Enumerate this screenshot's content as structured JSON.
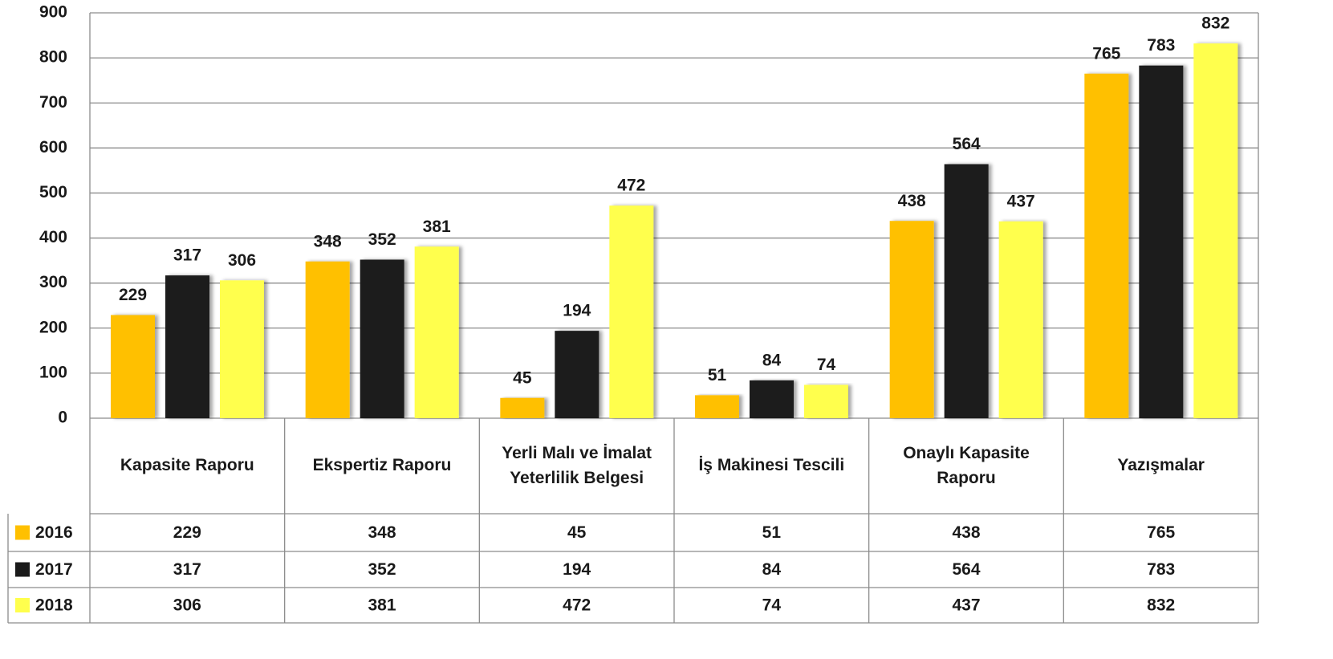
{
  "chart_data": {
    "type": "bar",
    "categories": [
      "Kapasite Raporu",
      "Ekspertiz Raporu",
      "Yerli Malı ve İmalat Yeterlilik Belgesi",
      "İş Makinesi Tescili",
      "Onaylı Kapasite Raporu",
      "Yazışmalar"
    ],
    "series": [
      {
        "name": "2016",
        "color": "#FFC000",
        "values": [
          229,
          348,
          45,
          51,
          438,
          765
        ]
      },
      {
        "name": "2017",
        "color": "#1A1A1A",
        "values": [
          317,
          352,
          194,
          84,
          564,
          783
        ]
      },
      {
        "name": "2018",
        "color": "#FFFF4D",
        "values": [
          306,
          381,
          472,
          74,
          437,
          832
        ]
      }
    ],
    "ylim": [
      0,
      900
    ],
    "yticks": [
      0,
      100,
      200,
      300,
      400,
      500,
      600,
      700,
      800,
      900
    ],
    "grid": true,
    "data_table": true
  }
}
